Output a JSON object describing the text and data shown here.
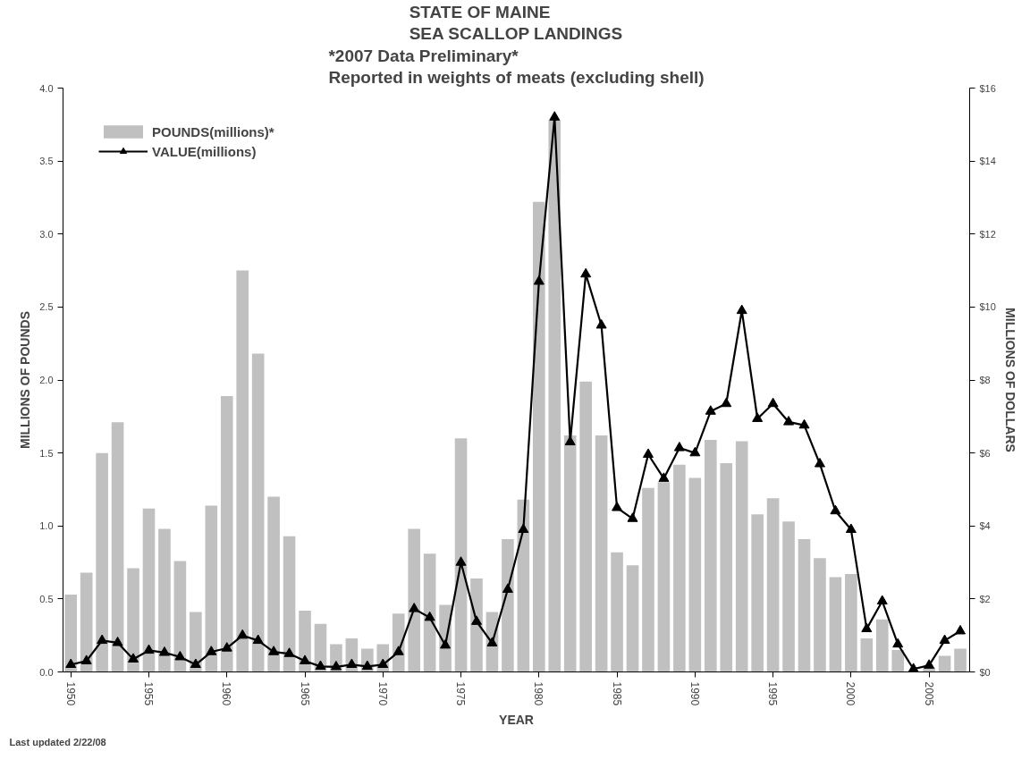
{
  "chart_data": {
    "type": "bar",
    "title": "STATE OF MAINE\nSEA SCALLOP LANDINGS",
    "subtitle": "*2007 Data Preliminary*\nReported in weights of meats (excluding shell)",
    "xlabel": "YEAR",
    "ylabel": "MILLIONS OF POUNDS",
    "y2label": "MILLIONS OF DOLLARS",
    "annotations": [
      "Last updated 2/22/08"
    ],
    "x": [
      1950,
      1951,
      1952,
      1953,
      1954,
      1955,
      1956,
      1957,
      1958,
      1959,
      1960,
      1961,
      1962,
      1963,
      1964,
      1965,
      1966,
      1967,
      1968,
      1969,
      1970,
      1971,
      1972,
      1973,
      1974,
      1975,
      1976,
      1977,
      1978,
      1979,
      1980,
      1981,
      1982,
      1983,
      1984,
      1985,
      1986,
      1987,
      1988,
      1989,
      1990,
      1991,
      1992,
      1993,
      1994,
      1995,
      1996,
      1997,
      1998,
      1999,
      2000,
      2001,
      2002,
      2003,
      2004,
      2005,
      2006,
      2007
    ],
    "series": [
      {
        "name": "POUNDS(millions)*",
        "color": "#c0c0c0",
        "values": [
          0.53,
          0.68,
          1.5,
          1.71,
          0.71,
          1.12,
          0.98,
          0.76,
          0.41,
          1.14,
          1.89,
          2.75,
          2.18,
          1.2,
          0.93,
          0.42,
          0.33,
          0.19,
          0.23,
          0.16,
          0.19,
          0.4,
          0.98,
          0.81,
          0.46,
          1.6,
          0.64,
          0.41,
          0.91,
          1.18,
          3.22,
          3.78,
          1.62,
          1.99,
          1.62,
          0.82,
          0.73,
          1.26,
          1.3,
          1.42,
          1.33,
          1.59,
          1.43,
          1.58,
          1.08,
          1.19,
          1.03,
          0.91,
          0.78,
          0.65,
          0.67,
          0.23,
          0.36,
          0.15,
          null,
          0.03,
          0.11,
          0.16
        ]
      },
      {
        "name": "VALUE(millions)",
        "type": "line",
        "axis": "y2",
        "color": "#000000",
        "marker": "triangle",
        "values": [
          0.2,
          0.3,
          0.86,
          0.8,
          0.35,
          0.59,
          0.53,
          0.41,
          0.2,
          0.55,
          0.65,
          1.0,
          0.86,
          0.55,
          0.5,
          0.3,
          0.15,
          0.14,
          0.2,
          0.15,
          0.2,
          0.55,
          1.73,
          1.49,
          0.73,
          3.0,
          1.38,
          0.79,
          2.26,
          3.9,
          10.7,
          15.2,
          6.3,
          10.9,
          9.5,
          4.5,
          4.2,
          5.96,
          5.3,
          6.14,
          6.0,
          7.14,
          7.35,
          9.9,
          6.94,
          7.35,
          6.85,
          6.76,
          5.7,
          4.41,
          3.9,
          1.18,
          1.94,
          0.76,
          0.08,
          0.18,
          0.86,
          1.12
        ]
      }
    ],
    "xlim": [
      1949.5,
      2007.6
    ],
    "xticks": [
      1950,
      1955,
      1960,
      1965,
      1970,
      1975,
      1980,
      1985,
      1990,
      1995,
      2000,
      2005
    ],
    "ylim": [
      0,
      4
    ],
    "yticks": [
      {
        "value": 0,
        "label": "0.0"
      },
      {
        "value": 0.5,
        "label": "0.5"
      },
      {
        "value": 1,
        "label": "1.0"
      },
      {
        "value": 1.5,
        "label": "1.5"
      },
      {
        "value": 2,
        "label": "2.0"
      },
      {
        "value": 2.5,
        "label": "2.5"
      },
      {
        "value": 3,
        "label": "3.0"
      },
      {
        "value": 3.5,
        "label": "3.5"
      },
      {
        "value": 4,
        "label": "4.0"
      }
    ],
    "y2lim": [
      0,
      16
    ],
    "y2ticks": [
      {
        "value": 0,
        "label": "$0"
      },
      {
        "value": 2,
        "label": "$2"
      },
      {
        "value": 4,
        "label": "$4"
      },
      {
        "value": 6,
        "label": "$6"
      },
      {
        "value": 8,
        "label": "$8"
      },
      {
        "value": 10,
        "label": "$10"
      },
      {
        "value": 12,
        "label": "$12"
      },
      {
        "value": 14,
        "label": "$14"
      },
      {
        "value": 16,
        "label": "$16"
      }
    ],
    "grid": false,
    "legend": "top left"
  }
}
